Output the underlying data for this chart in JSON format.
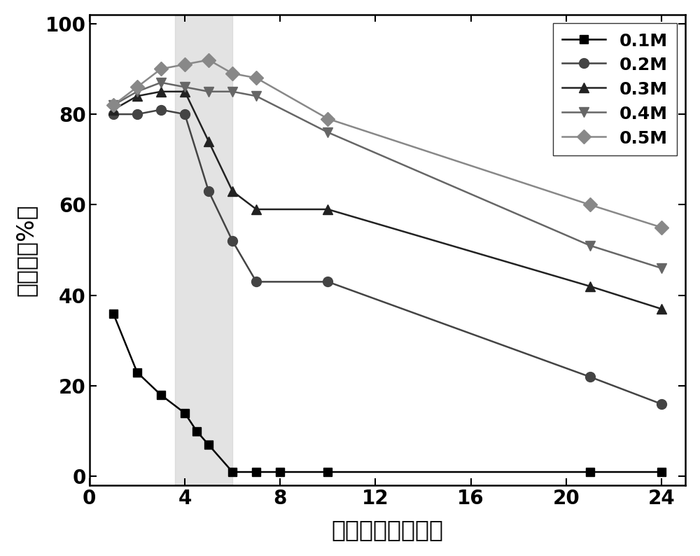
{
  "series": {
    "0.1M": {
      "x": [
        1,
        2,
        3,
        4,
        4.5,
        5,
        6,
        7,
        8,
        10,
        21,
        24
      ],
      "y": [
        36,
        23,
        18,
        14,
        10,
        7,
        1,
        1,
        1,
        1,
        1,
        1
      ],
      "color": "#000000",
      "marker": "s",
      "markersize": 9,
      "linestyle": "-"
    },
    "0.2M": {
      "x": [
        1,
        2,
        3,
        4,
        5,
        6,
        7,
        10,
        21,
        24
      ],
      "y": [
        80,
        80,
        81,
        80,
        63,
        52,
        43,
        43,
        22,
        16
      ],
      "color": "#444444",
      "marker": "o",
      "markersize": 10,
      "linestyle": "-"
    },
    "0.3M": {
      "x": [
        1,
        2,
        3,
        4,
        5,
        6,
        7,
        10,
        21,
        24
      ],
      "y": [
        81,
        84,
        85,
        85,
        74,
        63,
        59,
        59,
        42,
        37
      ],
      "color": "#222222",
      "marker": "^",
      "markersize": 10,
      "linestyle": "-"
    },
    "0.4M": {
      "x": [
        1,
        2,
        3,
        4,
        5,
        6,
        7,
        10,
        21,
        24
      ],
      "y": [
        82,
        85,
        87,
        86,
        85,
        85,
        84,
        76,
        51,
        46
      ],
      "color": "#666666",
      "marker": "v",
      "markersize": 10,
      "linestyle": "-"
    },
    "0.5M": {
      "x": [
        1,
        2,
        3,
        4,
        5,
        6,
        7,
        10,
        21,
        24
      ],
      "y": [
        82,
        86,
        90,
        91,
        92,
        89,
        88,
        79,
        60,
        55
      ],
      "color": "#888888",
      "marker": "D",
      "markersize": 10,
      "linestyle": "-"
    }
  },
  "xlabel": "提取时间（小时）",
  "ylabel": "提取率（%）",
  "xlim": [
    0,
    25
  ],
  "ylim": [
    -2,
    102
  ],
  "xticks": [
    0,
    4,
    8,
    12,
    16,
    20,
    24
  ],
  "yticks": [
    0,
    20,
    40,
    60,
    80,
    100
  ],
  "shade_xmin": 3.6,
  "shade_xmax": 6.0,
  "shade_color": "#cccccc",
  "shade_alpha": 0.55,
  "background_color": "#ffffff",
  "legend_loc": "upper right",
  "xlabel_fontsize": 24,
  "ylabel_fontsize": 24,
  "tick_fontsize": 20,
  "legend_fontsize": 18
}
